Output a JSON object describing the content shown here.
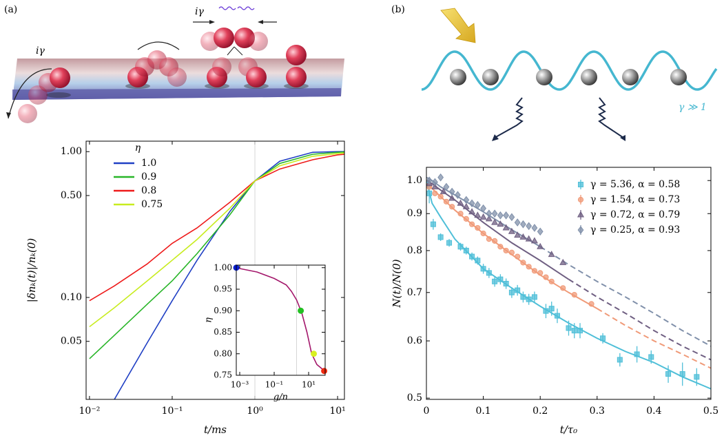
{
  "figure": {
    "panel_labels": [
      "(a)",
      "(b)"
    ],
    "illustration_a_labels": [
      "iγ",
      "iγ"
    ],
    "illustration_b_label": "γ ≫ 1"
  },
  "chart_data": [
    {
      "type": "line",
      "xlabel": "t/ms",
      "ylabel": "|δnₖ(t)|/nₖ(0)",
      "xlog": true,
      "ylog": true,
      "xlim": [
        0.0091,
        12.1
      ],
      "ylim": [
        0.02,
        1.18
      ],
      "xticks": [
        {
          "value": 0.01,
          "label": "10⁻²"
        },
        {
          "value": 0.1,
          "label": "10⁻¹"
        },
        {
          "value": 1,
          "label": "10⁰"
        },
        {
          "value": 10,
          "label": "10¹"
        }
      ],
      "yticks": [
        0.05,
        {
          "value": 0.1,
          "label": "0.10"
        },
        {
          "value": 0.5,
          "label": "0.50"
        },
        {
          "value": 1,
          "label": "1.00"
        }
      ],
      "vline": 1,
      "legend_title": "η",
      "legend": "upper left",
      "x": [
        0.01,
        0.02,
        0.05,
        0.1,
        0.2,
        0.5,
        1,
        2,
        5,
        10,
        15
      ],
      "series": [
        {
          "name": "1.0",
          "color": "#1f3fc4",
          "values": [
            0.01,
            0.02,
            0.049,
            0.095,
            0.18,
            0.39,
            0.63,
            0.86,
            0.99,
            1.0,
            1.0
          ]
        },
        {
          "name": "0.9",
          "color": "#27b527",
          "values": [
            0.038,
            0.055,
            0.09,
            0.13,
            0.2,
            0.37,
            0.63,
            0.83,
            0.96,
            0.99,
            1.0
          ]
        },
        {
          "name": "0.8",
          "color": "#ee1a1a",
          "values": [
            0.095,
            0.12,
            0.17,
            0.235,
            0.3,
            0.45,
            0.63,
            0.76,
            0.88,
            0.95,
            0.97
          ]
        },
        {
          "name": "0.75",
          "color": "#c8ec1e",
          "values": [
            0.063,
            0.085,
            0.13,
            0.18,
            0.25,
            0.41,
            0.63,
            0.8,
            0.93,
            0.97,
            0.99
          ]
        }
      ]
    },
    {
      "type": "line",
      "xlabel": "g/n",
      "ylabel": "η",
      "xlog": true,
      "ylog": false,
      "xlim": [
        0.00063,
        91
      ],
      "ylim": [
        0.75,
        1.006
      ],
      "xticks": [
        {
          "value": 0.001,
          "label": "10⁻³"
        },
        {
          "value": 0.1,
          "label": "10⁻¹"
        },
        {
          "value": 10,
          "label": "10¹"
        }
      ],
      "yticks": [
        0.75,
        {
          "value": 0.8,
          "label": "0.80"
        },
        0.85,
        {
          "value": 0.9,
          "label": "0.90"
        },
        0.95,
        {
          "value": 1,
          "label": "1.00"
        }
      ],
      "vline": 2,
      "x": [
        0.00063,
        0.001,
        0.01,
        0.1,
        0.5,
        1,
        2,
        4,
        8,
        15,
        30,
        60,
        80
      ],
      "series": [
        {
          "color": "#a3176b",
          "values": [
            1.0,
            0.998,
            0.99,
            0.975,
            0.96,
            0.945,
            0.925,
            0.895,
            0.85,
            0.8,
            0.775,
            0.765,
            0.76
          ]
        }
      ],
      "points": {
        "x": [
          0.00063,
          3.5,
          20,
          80
        ],
        "values": [
          1.0,
          0.9,
          0.8,
          0.76
        ],
        "colors": [
          "#0a1fd0",
          "#22c022",
          "#d8f020",
          "#f02a10"
        ]
      }
    },
    {
      "type": "scatter",
      "xlabel": "t/τ₀",
      "ylabel": "N(t)/N(0)",
      "xlog": false,
      "ylog": true,
      "xlim": [
        0,
        0.5
      ],
      "ylim": [
        0.498,
        1.043
      ],
      "xticks": [
        0,
        0.1,
        0.2,
        0.3,
        0.4,
        0.5
      ],
      "yticks": [
        0.5,
        0.6,
        0.7,
        0.8,
        0.9,
        {
          "value": 1,
          "label": "1.0"
        }
      ],
      "legend": "upper right",
      "fit_x": [
        0,
        0.01,
        0.025,
        0.05,
        0.1,
        0.15,
        0.2,
        0.25,
        0.3,
        0.35,
        0.4,
        0.45,
        0.5
      ],
      "series": [
        {
          "name": "γ = 5.36, α = 0.58",
          "color": "#4fbfd8",
          "marker": "square",
          "x": [
            0.005,
            0.012,
            0.025,
            0.04,
            0.06,
            0.07,
            0.08,
            0.09,
            0.1,
            0.11,
            0.12,
            0.13,
            0.14,
            0.15,
            0.16,
            0.17,
            0.18,
            0.19,
            0.21,
            0.22,
            0.23,
            0.25,
            0.26,
            0.27,
            0.31,
            0.34,
            0.37,
            0.395,
            0.425,
            0.45,
            0.475
          ],
          "values": [
            0.96,
            0.87,
            0.835,
            0.82,
            0.81,
            0.8,
            0.785,
            0.775,
            0.755,
            0.745,
            0.725,
            0.73,
            0.72,
            0.7,
            0.705,
            0.69,
            0.685,
            0.69,
            0.66,
            0.665,
            0.65,
            0.625,
            0.62,
            0.62,
            0.605,
            0.565,
            0.575,
            0.57,
            0.54,
            0.54,
            0.535
          ],
          "errors": [
            0.03,
            0.015,
            0.01,
            0.01,
            0.01,
            0.01,
            0.01,
            0.01,
            0.012,
            0.012,
            0.012,
            0.012,
            0.012,
            0.012,
            0.012,
            0.012,
            0.012,
            0.012,
            0.015,
            0.015,
            0.015,
            0.015,
            0.015,
            0.015,
            0.01,
            0.012,
            0.015,
            0.012,
            0.015,
            0.02,
            0.015
          ],
          "fit_values": [
            1.0,
            0.93,
            0.89,
            0.83,
            0.755,
            0.71,
            0.67,
            0.635,
            0.605,
            0.58,
            0.56,
            0.535,
            0.515
          ],
          "solid_until": 0.5
        },
        {
          "name": "γ = 1.54, α = 0.73",
          "color": "#f09a78",
          "marker": "circle",
          "x": [
            0.005,
            0.015,
            0.025,
            0.035,
            0.045,
            0.06,
            0.07,
            0.08,
            0.09,
            0.1,
            0.11,
            0.12,
            0.13,
            0.14,
            0.15,
            0.16,
            0.17,
            0.18,
            0.19,
            0.2,
            0.21,
            0.22,
            0.24,
            0.26,
            0.29
          ],
          "values": [
            0.98,
            0.96,
            0.95,
            0.935,
            0.92,
            0.9,
            0.885,
            0.87,
            0.86,
            0.845,
            0.83,
            0.825,
            0.81,
            0.8,
            0.795,
            0.785,
            0.77,
            0.76,
            0.75,
            0.745,
            0.735,
            0.725,
            0.71,
            0.695,
            0.675
          ],
          "fit_values": [
            0.99,
            0.975,
            0.95,
            0.91,
            0.845,
            0.79,
            0.74,
            0.7,
            0.665,
            0.63,
            0.6,
            0.575,
            0.55
          ],
          "solid_until": 0.3
        },
        {
          "name": "γ = 0.72, α = 0.79",
          "color": "#6f5f82",
          "marker": "triangle",
          "x": [
            0.005,
            0.015,
            0.03,
            0.045,
            0.06,
            0.07,
            0.08,
            0.09,
            0.1,
            0.11,
            0.12,
            0.13,
            0.14,
            0.15,
            0.16,
            0.17,
            0.18,
            0.19,
            0.2,
            0.22,
            0.24
          ],
          "values": [
            0.99,
            0.98,
            0.965,
            0.945,
            0.93,
            0.92,
            0.905,
            0.895,
            0.89,
            0.885,
            0.875,
            0.87,
            0.86,
            0.85,
            0.84,
            0.835,
            0.83,
            0.825,
            0.81,
            0.79,
            0.77
          ],
          "fit_values": [
            1.0,
            0.99,
            0.97,
            0.94,
            0.875,
            0.82,
            0.775,
            0.73,
            0.69,
            0.655,
            0.62,
            0.59,
            0.565
          ],
          "solid_until": 0.25
        },
        {
          "name": "γ = 0.25, α = 0.93",
          "color": "#8090aa",
          "marker": "diamond",
          "x": [
            0.005,
            0.015,
            0.025,
            0.035,
            0.045,
            0.055,
            0.07,
            0.08,
            0.09,
            0.1,
            0.11,
            0.12,
            0.13,
            0.14,
            0.15,
            0.16,
            0.17,
            0.18,
            0.19,
            0.2
          ],
          "values": [
            1.0,
            0.995,
            1.01,
            0.98,
            0.965,
            0.955,
            0.94,
            0.93,
            0.925,
            0.915,
            0.9,
            0.9,
            0.895,
            0.895,
            0.89,
            0.875,
            0.87,
            0.865,
            0.86,
            0.85
          ],
          "fit_values": [
            1.01,
            1.0,
            0.98,
            0.955,
            0.905,
            0.855,
            0.81,
            0.765,
            0.725,
            0.69,
            0.655,
            0.62,
            0.59
          ],
          "solid_until": 0.2
        }
      ]
    }
  ]
}
